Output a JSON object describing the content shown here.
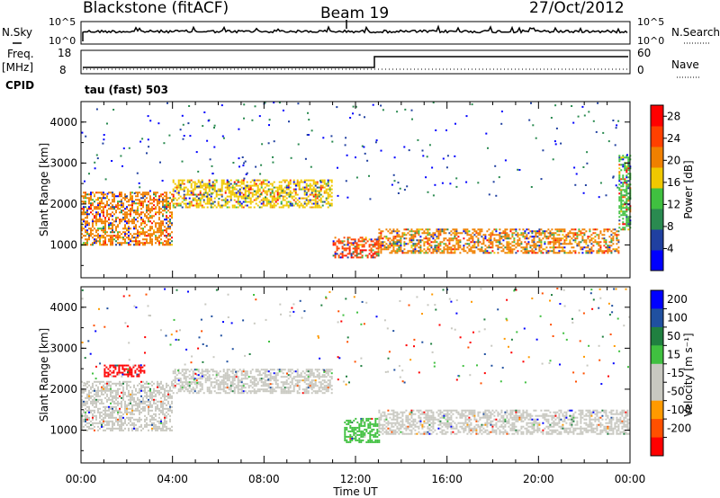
{
  "header": {
    "station": "Blackstone (fitACF)",
    "beam": "Beam 19",
    "date": "27/Oct/2012"
  },
  "noise_panel": {
    "left_label": "N.Sky",
    "right_label": "N.Search",
    "left_ticks": [
      "10^5",
      "10^0"
    ],
    "right_ticks": [
      "10^5",
      "10^0"
    ]
  },
  "freq_panel": {
    "left_label_1": "Freq.",
    "left_label_2": "[MHz]",
    "right_label": "Nave",
    "left_ticks": [
      "18",
      "8"
    ],
    "right_ticks": [
      "60",
      "0"
    ]
  },
  "cpid": {
    "label": "CPID",
    "value": "tau (fast) 503"
  },
  "x_axis": {
    "label": "Time UT",
    "ticks": [
      "00:00",
      "04:00",
      "08:00",
      "12:00",
      "16:00",
      "20:00",
      "00:00"
    ]
  },
  "colors": {
    "power": [
      "#0000ff",
      "#2040a0",
      "#2a8a50",
      "#40c040",
      "#f0c800",
      "#f08000",
      "#ff4000",
      "#ff0000"
    ],
    "velocity": [
      "#ff0000",
      "#ff5000",
      "#ff9a00",
      "#c8c8c0",
      "#c8c8c0",
      "#40c040",
      "#208040",
      "#2050a0",
      "#0000ff"
    ]
  },
  "chart_data": [
    {
      "type": "heatmap",
      "quantity": "power",
      "xlabel": "Time UT",
      "ylabel": "Slant Range [km]",
      "x_ticks": [
        "00:00",
        "04:00",
        "08:00",
        "12:00",
        "16:00",
        "20:00",
        "00:00"
      ],
      "xlim_hours": [
        0,
        24
      ],
      "ylim": [
        200,
        4500
      ],
      "y_ticks": [
        1000,
        2000,
        3000,
        4000
      ],
      "colorbar_label": "Power [dB]",
      "colorbar_ticks": [
        4,
        8,
        12,
        16,
        20,
        24,
        28
      ],
      "colorbar_range": [
        0,
        30
      ],
      "scatter_bands": [
        {
          "t_start": 0,
          "t_end": 4,
          "range_start": 1000,
          "range_end": 2300,
          "power": 22
        },
        {
          "t_start": 4,
          "t_end": 11,
          "range_start": 1900,
          "range_end": 2600,
          "power": 16
        },
        {
          "t_start": 11,
          "t_end": 13,
          "range_start": 700,
          "range_end": 1200,
          "power": 24
        },
        {
          "t_start": 13,
          "t_end": 23.5,
          "range_start": 800,
          "range_end": 1400,
          "power": 22
        },
        {
          "t_start": 23.5,
          "t_end": 24,
          "range_start": 1400,
          "range_end": 3200,
          "power": 14
        }
      ]
    },
    {
      "type": "heatmap",
      "quantity": "velocity",
      "xlabel": "Time UT",
      "ylabel": "Slant Range [km]",
      "x_ticks": [
        "00:00",
        "04:00",
        "08:00",
        "12:00",
        "16:00",
        "20:00",
        "00:00"
      ],
      "xlim_hours": [
        0,
        24
      ],
      "ylim": [
        200,
        4500
      ],
      "y_ticks": [
        1000,
        2000,
        3000,
        4000
      ],
      "colorbar_label": "Velocity [m s⁻¹]",
      "colorbar_ticks": [
        200,
        100,
        50,
        15,
        -15,
        -50,
        -100,
        -200
      ],
      "scatter_bands": [
        {
          "t_start": 1,
          "t_end": 2.8,
          "range_start": 2300,
          "range_end": 2600,
          "velocity": -200
        },
        {
          "t_start": 0,
          "t_end": 4,
          "range_start": 1000,
          "range_end": 2200,
          "velocity": 0
        },
        {
          "t_start": 4,
          "t_end": 11,
          "range_start": 1900,
          "range_end": 2500,
          "velocity": 0
        },
        {
          "t_start": 11.5,
          "t_end": 13,
          "range_start": 700,
          "range_end": 1300,
          "velocity": 30
        },
        {
          "t_start": 13,
          "t_end": 24,
          "range_start": 900,
          "range_end": 1500,
          "velocity": 0
        }
      ]
    }
  ]
}
